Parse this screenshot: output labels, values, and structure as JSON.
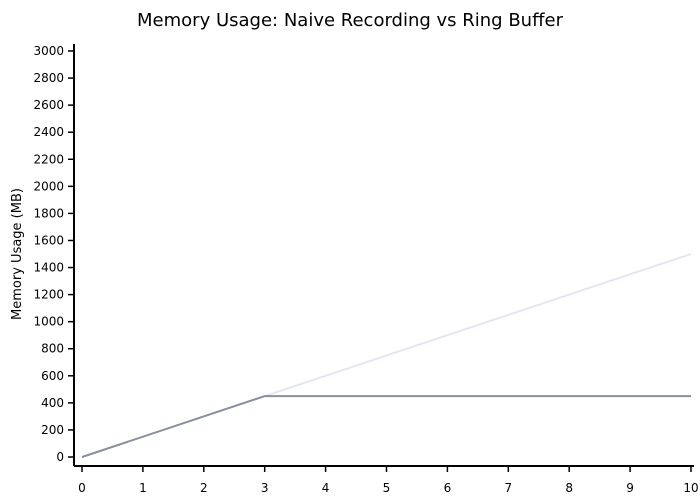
{
  "chart_data": {
    "type": "line",
    "title": "Memory Usage: Naive Recording vs Ring Buffer",
    "xlabel": "",
    "ylabel": "Memory Usage (MB)",
    "xlim": [
      0,
      10
    ],
    "ylim": [
      0,
      3000
    ],
    "x_ticks": [
      "0",
      "1",
      "2",
      "3",
      "4",
      "5",
      "6",
      "7",
      "8",
      "9",
      "10"
    ],
    "y_ticks": [
      "0",
      "200",
      "400",
      "600",
      "800",
      "1000",
      "1200",
      "1400",
      "1600",
      "1800",
      "2000",
      "2200",
      "2400",
      "2600",
      "2800",
      "3000"
    ],
    "grid": false,
    "series": [
      {
        "color": "#e6e6f2",
        "x": [
          0,
          10
        ],
        "y": [
          0,
          1500
        ]
      },
      {
        "color": "#8a8f9f",
        "x": [
          0,
          3,
          10
        ],
        "y": [
          0,
          450,
          450
        ]
      }
    ]
  }
}
